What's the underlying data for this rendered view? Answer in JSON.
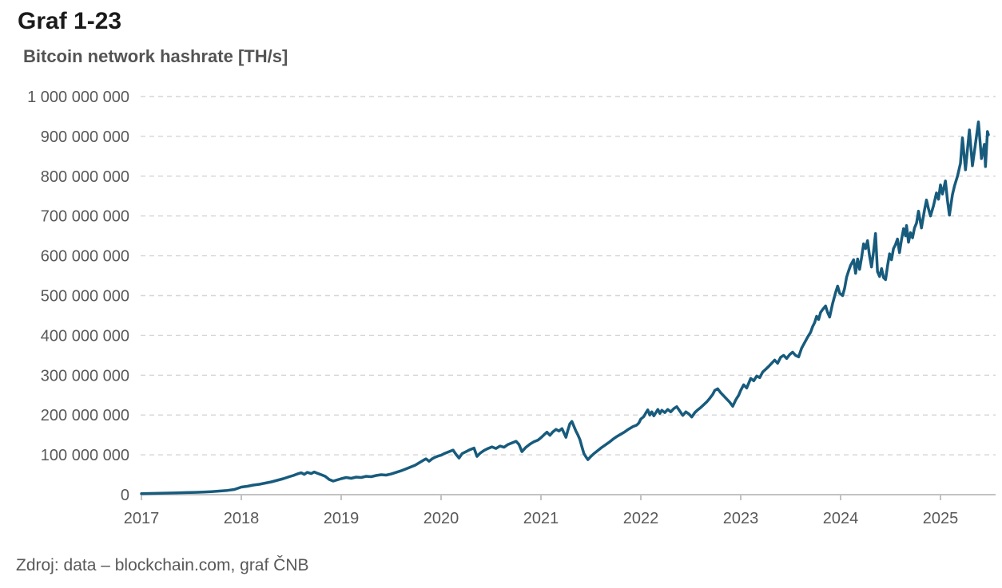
{
  "header": {
    "title": "Graf 1-23"
  },
  "footer": {
    "source": "Zdroj: data – blockchain.com, graf ČNB"
  },
  "colors": {
    "line": "#175b7d",
    "grid": "#d6d6d6",
    "axis": "#c2c2c2",
    "tick_label": "#595959",
    "title": "#1a1a1a",
    "subtitle": "#545454"
  },
  "chart_data": {
    "type": "line",
    "title": "Bitcoin network hashrate [TH/s]",
    "xlabel": "",
    "ylabel": "",
    "unit": "TH/s",
    "grid": "horizontal-dashed",
    "legend": "none",
    "xlim": [
      2017,
      2025.55
    ],
    "ylim": [
      0,
      1000000000
    ],
    "x_ticks": [
      2017,
      2018,
      2019,
      2020,
      2021,
      2022,
      2023,
      2024,
      2025
    ],
    "y_ticks": [
      {
        "value": 0,
        "label": "0"
      },
      {
        "value": 100000000,
        "label": "100 000 000"
      },
      {
        "value": 200000000,
        "label": "200 000 000"
      },
      {
        "value": 300000000,
        "label": "300 000 000"
      },
      {
        "value": 400000000,
        "label": "400 000 000"
      },
      {
        "value": 500000000,
        "label": "500 000 000"
      },
      {
        "value": 600000000,
        "label": "600 000 000"
      },
      {
        "value": 700000000,
        "label": "700 000 000"
      },
      {
        "value": 800000000,
        "label": "800 000 000"
      },
      {
        "value": 900000000,
        "label": "900 000 000"
      },
      {
        "value": 1000000000,
        "label": "1 000 000 000"
      }
    ],
    "series": [
      {
        "name": "Bitcoin network hashrate",
        "points": [
          [
            2017.0,
            2500000
          ],
          [
            2017.09,
            3000000
          ],
          [
            2017.18,
            3500000
          ],
          [
            2017.27,
            4000000
          ],
          [
            2017.36,
            4600000
          ],
          [
            2017.45,
            5200000
          ],
          [
            2017.54,
            5800000
          ],
          [
            2017.62,
            6600000
          ],
          [
            2017.7,
            7600000
          ],
          [
            2017.78,
            9000000
          ],
          [
            2017.86,
            10600000
          ],
          [
            2017.93,
            13000000
          ],
          [
            2018.0,
            19000000
          ],
          [
            2018.06,
            21000000
          ],
          [
            2018.12,
            24000000
          ],
          [
            2018.18,
            26000000
          ],
          [
            2018.24,
            29000000
          ],
          [
            2018.3,
            32000000
          ],
          [
            2018.36,
            36000000
          ],
          [
            2018.42,
            40000000
          ],
          [
            2018.48,
            45000000
          ],
          [
            2018.52,
            48000000
          ],
          [
            2018.56,
            52000000
          ],
          [
            2018.6,
            55000000
          ],
          [
            2018.63,
            51000000
          ],
          [
            2018.66,
            56000000
          ],
          [
            2018.7,
            53000000
          ],
          [
            2018.73,
            57000000
          ],
          [
            2018.76,
            54000000
          ],
          [
            2018.8,
            50000000
          ],
          [
            2018.84,
            46000000
          ],
          [
            2018.88,
            38000000
          ],
          [
            2018.92,
            34000000
          ],
          [
            2018.96,
            37000000
          ],
          [
            2019.0,
            40000000
          ],
          [
            2019.05,
            43000000
          ],
          [
            2019.1,
            41000000
          ],
          [
            2019.15,
            44000000
          ],
          [
            2019.2,
            43000000
          ],
          [
            2019.25,
            46000000
          ],
          [
            2019.3,
            45000000
          ],
          [
            2019.35,
            48000000
          ],
          [
            2019.4,
            50000000
          ],
          [
            2019.45,
            49000000
          ],
          [
            2019.5,
            52000000
          ],
          [
            2019.55,
            56000000
          ],
          [
            2019.6,
            60000000
          ],
          [
            2019.65,
            65000000
          ],
          [
            2019.7,
            70000000
          ],
          [
            2019.74,
            74000000
          ],
          [
            2019.78,
            80000000
          ],
          [
            2019.82,
            86000000
          ],
          [
            2019.85,
            90000000
          ],
          [
            2019.88,
            84000000
          ],
          [
            2019.91,
            90000000
          ],
          [
            2019.94,
            94000000
          ],
          [
            2019.97,
            97000000
          ],
          [
            2020.0,
            99000000
          ],
          [
            2020.04,
            104000000
          ],
          [
            2020.08,
            108000000
          ],
          [
            2020.12,
            112000000
          ],
          [
            2020.15,
            101000000
          ],
          [
            2020.18,
            92000000
          ],
          [
            2020.21,
            103000000
          ],
          [
            2020.25,
            108000000
          ],
          [
            2020.29,
            113000000
          ],
          [
            2020.33,
            117000000
          ],
          [
            2020.36,
            96000000
          ],
          [
            2020.39,
            104000000
          ],
          [
            2020.43,
            111000000
          ],
          [
            2020.47,
            116000000
          ],
          [
            2020.51,
            120000000
          ],
          [
            2020.55,
            116000000
          ],
          [
            2020.59,
            122000000
          ],
          [
            2020.63,
            119000000
          ],
          [
            2020.67,
            126000000
          ],
          [
            2020.71,
            130000000
          ],
          [
            2020.75,
            134000000
          ],
          [
            2020.78,
            126000000
          ],
          [
            2020.81,
            108000000
          ],
          [
            2020.85,
            119000000
          ],
          [
            2020.89,
            127000000
          ],
          [
            2020.93,
            133000000
          ],
          [
            2020.97,
            137000000
          ],
          [
            2021.0,
            143000000
          ],
          [
            2021.03,
            150000000
          ],
          [
            2021.06,
            157000000
          ],
          [
            2021.09,
            149000000
          ],
          [
            2021.12,
            158000000
          ],
          [
            2021.15,
            164000000
          ],
          [
            2021.18,
            160000000
          ],
          [
            2021.21,
            166000000
          ],
          [
            2021.23,
            155000000
          ],
          [
            2021.25,
            144000000
          ],
          [
            2021.27,
            162000000
          ],
          [
            2021.29,
            178000000
          ],
          [
            2021.31,
            184000000
          ],
          [
            2021.33,
            172000000
          ],
          [
            2021.35,
            160000000
          ],
          [
            2021.37,
            150000000
          ],
          [
            2021.39,
            138000000
          ],
          [
            2021.41,
            120000000
          ],
          [
            2021.43,
            103000000
          ],
          [
            2021.45,
            95000000
          ],
          [
            2021.47,
            88000000
          ],
          [
            2021.5,
            96000000
          ],
          [
            2021.53,
            103000000
          ],
          [
            2021.56,
            109000000
          ],
          [
            2021.6,
            117000000
          ],
          [
            2021.64,
            124000000
          ],
          [
            2021.68,
            131000000
          ],
          [
            2021.72,
            139000000
          ],
          [
            2021.76,
            146000000
          ],
          [
            2021.8,
            152000000
          ],
          [
            2021.84,
            158000000
          ],
          [
            2021.88,
            165000000
          ],
          [
            2021.92,
            171000000
          ],
          [
            2021.96,
            175000000
          ],
          [
            2021.98,
            180000000
          ],
          [
            2022.0,
            190000000
          ],
          [
            2022.03,
            196000000
          ],
          [
            2022.05,
            205000000
          ],
          [
            2022.07,
            213000000
          ],
          [
            2022.09,
            200000000
          ],
          [
            2022.11,
            208000000
          ],
          [
            2022.13,
            198000000
          ],
          [
            2022.15,
            206000000
          ],
          [
            2022.17,
            214000000
          ],
          [
            2022.19,
            204000000
          ],
          [
            2022.21,
            212000000
          ],
          [
            2022.24,
            206000000
          ],
          [
            2022.27,
            214000000
          ],
          [
            2022.3,
            208000000
          ],
          [
            2022.33,
            216000000
          ],
          [
            2022.36,
            221000000
          ],
          [
            2022.39,
            210000000
          ],
          [
            2022.42,
            199000000
          ],
          [
            2022.45,
            208000000
          ],
          [
            2022.48,
            203000000
          ],
          [
            2022.51,
            195000000
          ],
          [
            2022.54,
            206000000
          ],
          [
            2022.57,
            213000000
          ],
          [
            2022.6,
            219000000
          ],
          [
            2022.63,
            226000000
          ],
          [
            2022.66,
            233000000
          ],
          [
            2022.69,
            242000000
          ],
          [
            2022.72,
            252000000
          ],
          [
            2022.74,
            262000000
          ],
          [
            2022.77,
            266000000
          ],
          [
            2022.8,
            256000000
          ],
          [
            2022.83,
            248000000
          ],
          [
            2022.86,
            240000000
          ],
          [
            2022.89,
            232000000
          ],
          [
            2022.92,
            222000000
          ],
          [
            2022.95,
            238000000
          ],
          [
            2022.98,
            250000000
          ],
          [
            2023.0,
            262000000
          ],
          [
            2023.03,
            276000000
          ],
          [
            2023.06,
            268000000
          ],
          [
            2023.1,
            292000000
          ],
          [
            2023.13,
            286000000
          ],
          [
            2023.16,
            298000000
          ],
          [
            2023.19,
            294000000
          ],
          [
            2023.22,
            308000000
          ],
          [
            2023.25,
            315000000
          ],
          [
            2023.28,
            322000000
          ],
          [
            2023.31,
            330000000
          ],
          [
            2023.34,
            338000000
          ],
          [
            2023.37,
            330000000
          ],
          [
            2023.4,
            345000000
          ],
          [
            2023.43,
            350000000
          ],
          [
            2023.46,
            342000000
          ],
          [
            2023.49,
            352000000
          ],
          [
            2023.52,
            358000000
          ],
          [
            2023.55,
            350000000
          ],
          [
            2023.58,
            346000000
          ],
          [
            2023.61,
            368000000
          ],
          [
            2023.64,
            382000000
          ],
          [
            2023.67,
            396000000
          ],
          [
            2023.7,
            408000000
          ],
          [
            2023.72,
            422000000
          ],
          [
            2023.74,
            432000000
          ],
          [
            2023.76,
            448000000
          ],
          [
            2023.78,
            440000000
          ],
          [
            2023.8,
            458000000
          ],
          [
            2023.82,
            465000000
          ],
          [
            2023.85,
            474000000
          ],
          [
            2023.87,
            458000000
          ],
          [
            2023.89,
            446000000
          ],
          [
            2023.92,
            480000000
          ],
          [
            2023.95,
            508000000
          ],
          [
            2023.97,
            524000000
          ],
          [
            2023.99,
            506000000
          ],
          [
            2024.02,
            500000000
          ],
          [
            2024.04,
            518000000
          ],
          [
            2024.06,
            546000000
          ],
          [
            2024.08,
            562000000
          ],
          [
            2024.1,
            576000000
          ],
          [
            2024.13,
            590000000
          ],
          [
            2024.15,
            556000000
          ],
          [
            2024.17,
            592000000
          ],
          [
            2024.19,
            566000000
          ],
          [
            2024.21,
            596000000
          ],
          [
            2024.23,
            630000000
          ],
          [
            2024.25,
            618000000
          ],
          [
            2024.27,
            638000000
          ],
          [
            2024.29,
            600000000
          ],
          [
            2024.31,
            572000000
          ],
          [
            2024.33,
            610000000
          ],
          [
            2024.35,
            656000000
          ],
          [
            2024.37,
            560000000
          ],
          [
            2024.39,
            548000000
          ],
          [
            2024.41,
            568000000
          ],
          [
            2024.43,
            545000000
          ],
          [
            2024.45,
            540000000
          ],
          [
            2024.47,
            575000000
          ],
          [
            2024.49,
            605000000
          ],
          [
            2024.51,
            590000000
          ],
          [
            2024.53,
            618000000
          ],
          [
            2024.55,
            628000000
          ],
          [
            2024.57,
            642000000
          ],
          [
            2024.59,
            608000000
          ],
          [
            2024.61,
            640000000
          ],
          [
            2024.63,
            668000000
          ],
          [
            2024.65,
            650000000
          ],
          [
            2024.66,
            676000000
          ],
          [
            2024.68,
            634000000
          ],
          [
            2024.7,
            658000000
          ],
          [
            2024.72,
            645000000
          ],
          [
            2024.74,
            670000000
          ],
          [
            2024.76,
            682000000
          ],
          [
            2024.78,
            712000000
          ],
          [
            2024.81,
            670000000
          ],
          [
            2024.84,
            715000000
          ],
          [
            2024.86,
            740000000
          ],
          [
            2024.88,
            718000000
          ],
          [
            2024.9,
            700000000
          ],
          [
            2024.93,
            726000000
          ],
          [
            2024.96,
            758000000
          ],
          [
            2024.98,
            742000000
          ],
          [
            2025.0,
            778000000
          ],
          [
            2025.02,
            755000000
          ],
          [
            2025.05,
            788000000
          ],
          [
            2025.07,
            740000000
          ],
          [
            2025.09,
            702000000
          ],
          [
            2025.12,
            754000000
          ],
          [
            2025.14,
            775000000
          ],
          [
            2025.17,
            800000000
          ],
          [
            2025.2,
            832000000
          ],
          [
            2025.22,
            896000000
          ],
          [
            2025.25,
            816000000
          ],
          [
            2025.29,
            916000000
          ],
          [
            2025.32,
            826000000
          ],
          [
            2025.35,
            880000000
          ],
          [
            2025.38,
            936000000
          ],
          [
            2025.41,
            844000000
          ],
          [
            2025.44,
            880000000
          ],
          [
            2025.45,
            824000000
          ],
          [
            2025.47,
            912000000
          ],
          [
            2025.48,
            904000000
          ]
        ]
      }
    ]
  }
}
